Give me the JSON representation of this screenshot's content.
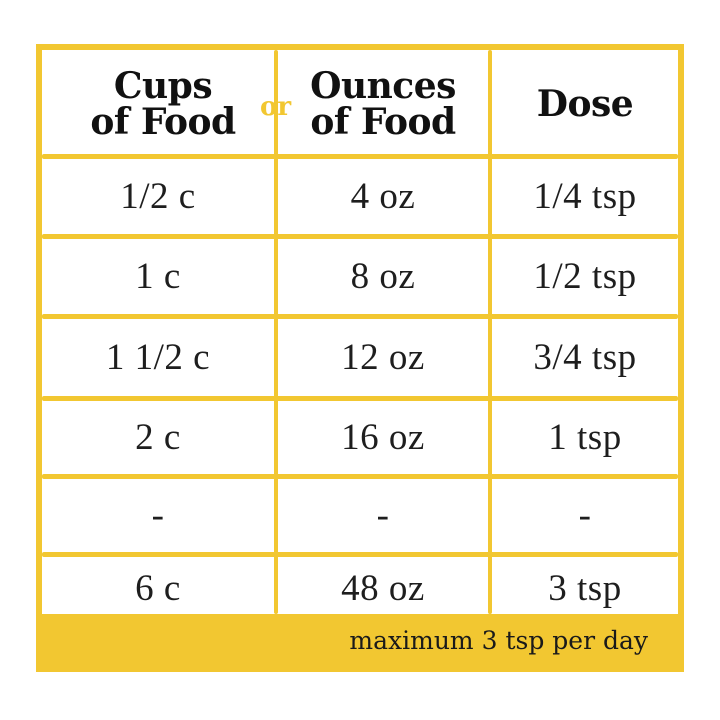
{
  "table": {
    "headers": {
      "cups": [
        "Cups",
        "of Food"
      ],
      "connector": "or",
      "ounces": [
        "Ounces",
        "of Food"
      ],
      "dose": "Dose"
    },
    "rows": [
      {
        "cups": "1/2 c",
        "ounces": "4 oz",
        "dose": "1/4 tsp"
      },
      {
        "cups": "1 c",
        "ounces": "8 oz",
        "dose": "1/2 tsp"
      },
      {
        "cups": "1 1/2 c",
        "ounces": "12 oz",
        "dose": "3/4 tsp"
      },
      {
        "cups": "2 c",
        "ounces": "16 oz",
        "dose": "1 tsp"
      },
      {
        "cups": "-",
        "ounces": "-",
        "dose": "-"
      },
      {
        "cups": "6 c",
        "ounces": "48 oz",
        "dose": "3 tsp"
      }
    ],
    "footer": "maximum 3 tsp per day"
  },
  "colors": {
    "accent": "#f2c731",
    "text": "#1a1a1a"
  }
}
